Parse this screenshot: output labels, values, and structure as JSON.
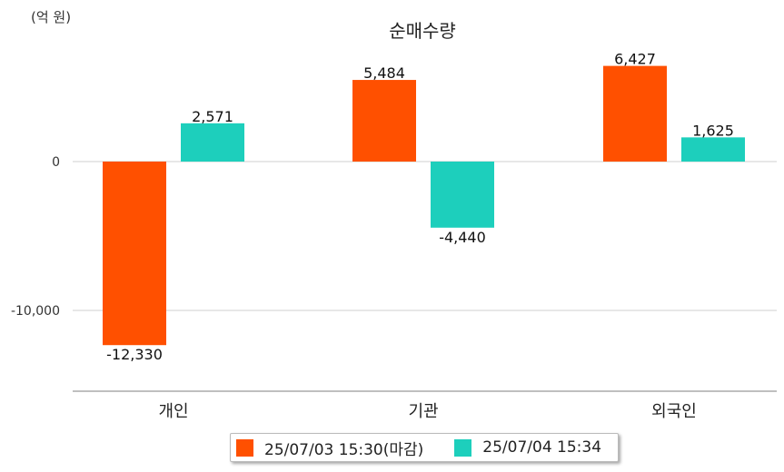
{
  "unit_label": "(억 원)",
  "chart_data": {
    "type": "bar",
    "title": "순매수량",
    "categories": [
      "개인",
      "기관",
      "외국인"
    ],
    "series": [
      {
        "name": "25/07/03 15:30(마감)",
        "color": "#ff5000",
        "values": [
          -12330,
          5484,
          6427
        ]
      },
      {
        "name": "25/07/04 15:34",
        "color": "#1dcfbc",
        "values": [
          2571,
          -4440,
          1625
        ]
      }
    ],
    "value_labels": [
      [
        "-12,330",
        "5,484",
        "6,427"
      ],
      [
        "2,571",
        "-4,440",
        "1,625"
      ]
    ],
    "yticks": [
      0,
      -10000
    ],
    "ytick_labels": [
      "0",
      "-10,000"
    ],
    "ylim": [
      -15500,
      11000
    ],
    "grid": true,
    "legend_position": "bottom"
  }
}
